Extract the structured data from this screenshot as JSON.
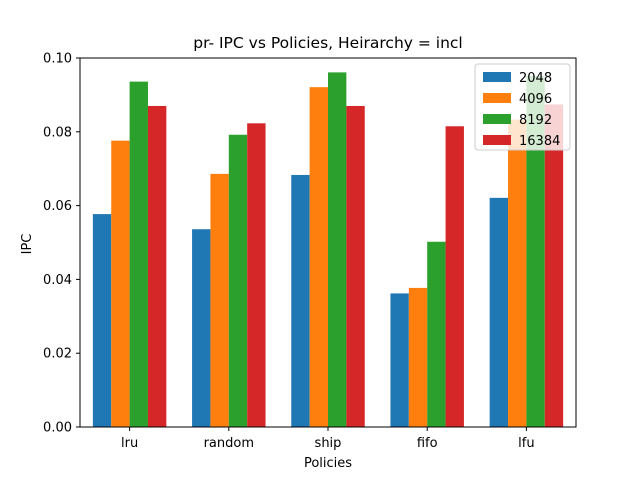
{
  "chart_data": {
    "type": "bar",
    "title": "pr- IPC vs Policies, Heirarchy = incl",
    "xlabel": "Policies",
    "ylabel": "IPC",
    "categories": [
      "lru",
      "random",
      "ship",
      "fifo",
      "lfu"
    ],
    "series": [
      {
        "name": "2048",
        "color": "#1f77b4",
        "values": [
          0.0577,
          0.0536,
          0.0683,
          0.0362,
          0.0621
        ]
      },
      {
        "name": "4096",
        "color": "#ff7f0e",
        "values": [
          0.0776,
          0.0686,
          0.0921,
          0.0377,
          0.0833
        ]
      },
      {
        "name": "8192",
        "color": "#2ca02c",
        "values": [
          0.0936,
          0.0792,
          0.0961,
          0.0502,
          0.0951
        ]
      },
      {
        "name": "16384",
        "color": "#d62728",
        "values": [
          0.087,
          0.0823,
          0.087,
          0.0815,
          0.0874
        ]
      }
    ],
    "ylim": [
      0,
      0.1
    ],
    "yticks": [
      0.0,
      0.02,
      0.04,
      0.06,
      0.08,
      0.1
    ],
    "ytick_labels": [
      "0.00",
      "0.02",
      "0.04",
      "0.06",
      "0.08",
      "0.10"
    ],
    "grid": false,
    "legend_position": "top-right"
  }
}
